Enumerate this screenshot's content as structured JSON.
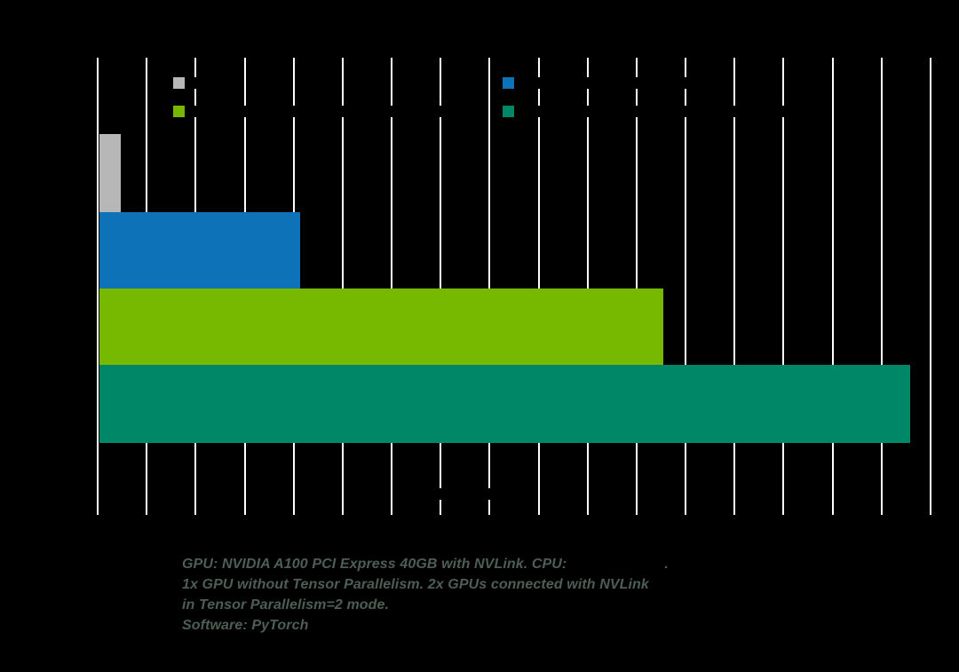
{
  "chart_data": {
    "type": "bar",
    "orientation": "horizontal",
    "title": "",
    "xlabel": "",
    "ylabel": "",
    "xlim": [
      0,
      17
    ],
    "gridlines": 18,
    "grid": true,
    "legend_position": "top",
    "categories": [
      ""
    ],
    "series": [
      {
        "name": "",
        "color": "#b7b7b7",
        "values": [
          0.43
        ]
      },
      {
        "name": "",
        "color": "#0e72b8",
        "values": [
          4.1
        ]
      },
      {
        "name": "",
        "color": "#76b900",
        "values": [
          11.5
        ]
      },
      {
        "name": "",
        "color": "#008768",
        "values": [
          16.55
        ]
      }
    ]
  },
  "legend": {
    "items": [
      {
        "label": "",
        "color": "#b7b7b7"
      },
      {
        "label": "",
        "color": "#0e72b8"
      },
      {
        "label": "",
        "color": "#76b900"
      },
      {
        "label": "",
        "color": "#008768"
      }
    ]
  },
  "footer": {
    "line1": "GPU: NVIDIA A100 PCI Express 40GB with NVLink. CPU:",
    "line1_suffix": ".",
    "line2": "1x GPU without Tensor Parallelism. 2x GPUs connected with NVLink",
    "line3": "in Tensor Parallelism=2 mode.",
    "line4": "Software: PyTorch",
    "color": "#4d5e55"
  }
}
